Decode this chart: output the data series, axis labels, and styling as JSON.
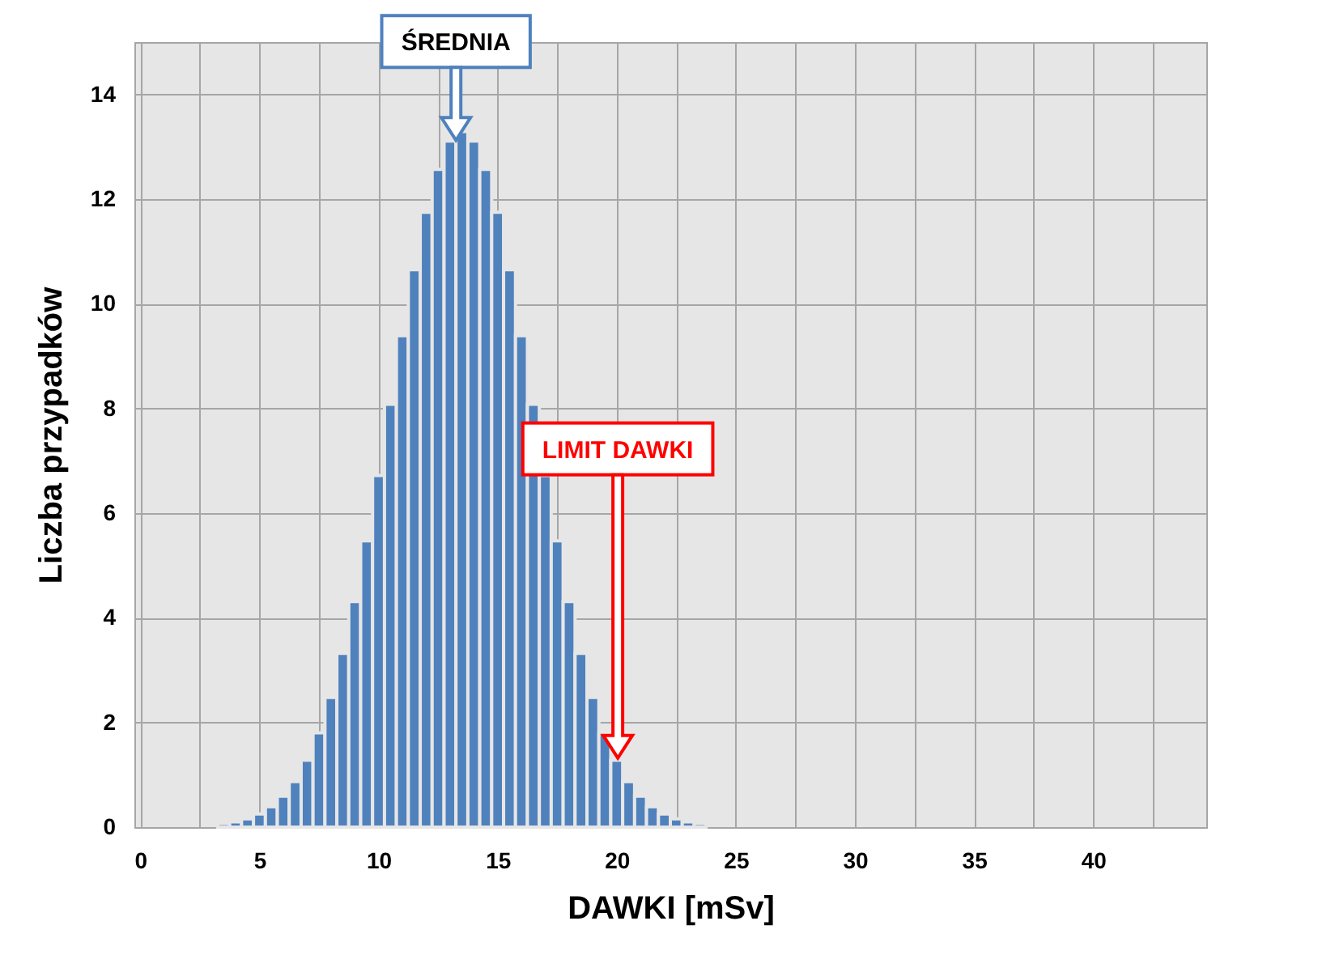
{
  "chart_data": {
    "type": "histogram",
    "xlabel": "DAWKI [mSv]",
    "ylabel": "Liczba przypadków",
    "bins": [
      3.25,
      3.75,
      4.25,
      4.75,
      5.25,
      5.75,
      6.25,
      6.75,
      7.25,
      7.75,
      8.25,
      8.75,
      9.25,
      9.75,
      10.25,
      10.75,
      11.25,
      11.75,
      12.25,
      12.75,
      13.25,
      13.75,
      14.25,
      14.75,
      15.25,
      15.75,
      16.25,
      16.75,
      17.25,
      17.75,
      18.25,
      18.75,
      19.25,
      19.75,
      20.25,
      20.75,
      21.25,
      21.75,
      22.25,
      22.75,
      23.25,
      23.75
    ],
    "values": [
      0.07,
      0.1,
      0.16,
      0.25,
      0.39,
      0.59,
      0.87,
      1.28,
      1.8,
      2.48,
      3.32,
      4.31,
      5.47,
      6.72,
      8.08,
      9.39,
      10.65,
      11.75,
      12.57,
      13.11,
      13.29,
      13.11,
      12.57,
      11.75,
      10.65,
      9.39,
      8.08,
      6.72,
      5.47,
      4.31,
      3.32,
      2.48,
      1.8,
      1.28,
      0.87,
      0.59,
      0.39,
      0.25,
      0.16,
      0.1,
      0.07
    ],
    "color": "#4f81bd",
    "xlim": [
      -0.25,
      44.75
    ],
    "xticks": [
      0,
      {
        "value": 2.5,
        "label": null
      },
      5,
      {
        "value": 7.5,
        "label": null
      },
      10,
      {
        "value": 12.5,
        "label": null
      },
      15,
      {
        "value": 17.5,
        "label": null
      },
      20,
      {
        "value": 22.5,
        "label": null
      },
      25,
      {
        "value": 27.5,
        "label": null
      },
      30,
      {
        "value": 32.5,
        "label": null
      },
      35,
      {
        "value": 37.5,
        "label": null
      },
      40,
      {
        "value": 42.5,
        "label": null
      }
    ],
    "ylim": [
      0,
      15
    ],
    "yticks": [
      0,
      2,
      4,
      6,
      8,
      10,
      12,
      14
    ],
    "grid": true,
    "annotations": [
      "ŚREDNIA",
      "LIMIT DAWKI"
    ]
  }
}
